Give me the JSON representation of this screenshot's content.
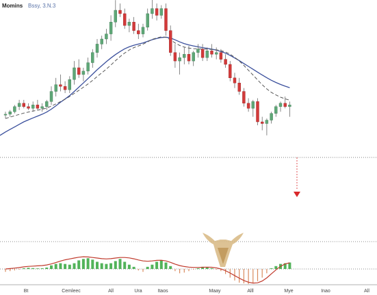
{
  "chart_data": {
    "type": "candlestick",
    "title": "Momins",
    "subtitle": "Bssy, 3.N.3",
    "x_ticks": [
      "Bt",
      "Cemleec",
      "All",
      "Ura",
      "Itaos",
      "Maay",
      "Alll",
      "Mye",
      "Inao",
      "All"
    ],
    "y_range": [
      0,
      100
    ],
    "reference_level": 40.5,
    "colors": {
      "up": "#5fa777",
      "down": "#d23a3a",
      "ma_slow": "#3a4f9c",
      "ma_fast": "#555555",
      "macd_line": "#c0392b",
      "histogram_pos": "#52b35a",
      "histogram_neg": "#d98a5e",
      "arrow": "#d9282b",
      "watermark": "#c7a36b"
    },
    "candles": [
      {
        "o": 38,
        "h": 40,
        "l": 36,
        "c": 38.5
      },
      {
        "o": 38.5,
        "h": 41,
        "l": 37,
        "c": 40
      },
      {
        "o": 40,
        "h": 44,
        "l": 39,
        "c": 43
      },
      {
        "o": 43,
        "h": 47,
        "l": 41,
        "c": 45
      },
      {
        "o": 45,
        "h": 47,
        "l": 42,
        "c": 43
      },
      {
        "o": 43,
        "h": 45,
        "l": 41,
        "c": 42
      },
      {
        "o": 42,
        "h": 46,
        "l": 40,
        "c": 44
      },
      {
        "o": 44,
        "h": 47,
        "l": 41,
        "c": 42
      },
      {
        "o": 42,
        "h": 45,
        "l": 40,
        "c": 43
      },
      {
        "o": 43,
        "h": 47,
        "l": 41,
        "c": 46
      },
      {
        "o": 46,
        "h": 55,
        "l": 44,
        "c": 52
      },
      {
        "o": 52,
        "h": 60,
        "l": 49,
        "c": 56
      },
      {
        "o": 56,
        "h": 62,
        "l": 52,
        "c": 55
      },
      {
        "o": 55,
        "h": 58,
        "l": 51,
        "c": 53
      },
      {
        "o": 53,
        "h": 61,
        "l": 51,
        "c": 59
      },
      {
        "o": 59,
        "h": 70,
        "l": 56,
        "c": 66
      },
      {
        "o": 66,
        "h": 71,
        "l": 60,
        "c": 62
      },
      {
        "o": 62,
        "h": 66,
        "l": 58,
        "c": 64
      },
      {
        "o": 64,
        "h": 72,
        "l": 62,
        "c": 69
      },
      {
        "o": 69,
        "h": 77,
        "l": 66,
        "c": 75
      },
      {
        "o": 75,
        "h": 83,
        "l": 72,
        "c": 80
      },
      {
        "o": 80,
        "h": 85,
        "l": 77,
        "c": 83
      },
      {
        "o": 83,
        "h": 89,
        "l": 80,
        "c": 86
      },
      {
        "o": 86,
        "h": 97,
        "l": 82,
        "c": 93
      },
      {
        "o": 93,
        "h": 106,
        "l": 90,
        "c": 100
      },
      {
        "o": 100,
        "h": 104,
        "l": 96,
        "c": 98
      },
      {
        "o": 98,
        "h": 101,
        "l": 89,
        "c": 91
      },
      {
        "o": 91,
        "h": 95,
        "l": 87,
        "c": 93
      },
      {
        "o": 93,
        "h": 96,
        "l": 86,
        "c": 88
      },
      {
        "o": 88,
        "h": 92,
        "l": 83,
        "c": 86
      },
      {
        "o": 86,
        "h": 92,
        "l": 84,
        "c": 90
      },
      {
        "o": 90,
        "h": 101,
        "l": 88,
        "c": 98
      },
      {
        "o": 98,
        "h": 108,
        "l": 95,
        "c": 101
      },
      {
        "o": 101,
        "h": 104,
        "l": 94,
        "c": 97
      },
      {
        "o": 97,
        "h": 103,
        "l": 95,
        "c": 101
      },
      {
        "o": 101,
        "h": 104,
        "l": 85,
        "c": 88
      },
      {
        "o": 88,
        "h": 91,
        "l": 73,
        "c": 75
      },
      {
        "o": 75,
        "h": 80,
        "l": 66,
        "c": 70
      },
      {
        "o": 70,
        "h": 75,
        "l": 62,
        "c": 72
      },
      {
        "o": 72,
        "h": 78,
        "l": 68,
        "c": 74
      },
      {
        "o": 74,
        "h": 79,
        "l": 68,
        "c": 70
      },
      {
        "o": 70,
        "h": 76,
        "l": 67,
        "c": 75
      },
      {
        "o": 75,
        "h": 80,
        "l": 72,
        "c": 77
      },
      {
        "o": 77,
        "h": 80,
        "l": 70,
        "c": 72
      },
      {
        "o": 72,
        "h": 78,
        "l": 70,
        "c": 76
      },
      {
        "o": 76,
        "h": 80,
        "l": 72,
        "c": 74
      },
      {
        "o": 74,
        "h": 78,
        "l": 71,
        "c": 75
      },
      {
        "o": 75,
        "h": 77,
        "l": 69,
        "c": 71
      },
      {
        "o": 71,
        "h": 74,
        "l": 66,
        "c": 68
      },
      {
        "o": 68,
        "h": 70,
        "l": 58,
        "c": 60
      },
      {
        "o": 60,
        "h": 63,
        "l": 54,
        "c": 57
      },
      {
        "o": 57,
        "h": 60,
        "l": 50,
        "c": 52
      },
      {
        "o": 52,
        "h": 54,
        "l": 43,
        "c": 45
      },
      {
        "o": 45,
        "h": 48,
        "l": 40,
        "c": 42
      },
      {
        "o": 42,
        "h": 47,
        "l": 37,
        "c": 46
      },
      {
        "o": 46,
        "h": 48,
        "l": 32,
        "c": 34
      },
      {
        "o": 34,
        "h": 37,
        "l": 29,
        "c": 33
      },
      {
        "o": 33,
        "h": 36,
        "l": 26,
        "c": 35
      },
      {
        "o": 35,
        "h": 40,
        "l": 33,
        "c": 39
      },
      {
        "o": 39,
        "h": 44,
        "l": 37,
        "c": 43
      },
      {
        "o": 43,
        "h": 46,
        "l": 40,
        "c": 45
      },
      {
        "o": 45,
        "h": 49,
        "l": 42,
        "c": 43
      },
      {
        "o": 43,
        "h": 46,
        "l": 37,
        "c": 44
      }
    ],
    "ma_slow": [
      28,
      29.5,
      31,
      32.5,
      34,
      35.2,
      36.3,
      37.4,
      38.5,
      39.8,
      41.5,
      43.5,
      45.6,
      47.5,
      49.5,
      52,
      54.5,
      57,
      59.6,
      62.2,
      64.8,
      67.2,
      69.6,
      71.8,
      73.8,
      75.6,
      77.2,
      78.4,
      79.3,
      80,
      80.7,
      81.6,
      82.6,
      83.3,
      83.9,
      84.1,
      83.6,
      82.5,
      81.3,
      80.3,
      79.5,
      78.9,
      78.4,
      77.9,
      77.5,
      77,
      76.4,
      75.6,
      74.6,
      73.3,
      71.8,
      70.2,
      68.5,
      66.8,
      65.1,
      63.4,
      61.7,
      60.1,
      58.6,
      57.3,
      56.1,
      55.1,
      54.2
    ],
    "ma_fast": [
      36,
      36.8,
      37.6,
      38.4,
      39.2,
      39.8,
      40.4,
      40.9,
      41.4,
      42.2,
      43.3,
      44.6,
      46,
      47.4,
      49,
      50.8,
      52.6,
      54.5,
      56.4,
      58.5,
      60.8,
      63,
      65.2,
      67.6,
      70.2,
      72.6,
      74.7,
      76.5,
      77.9,
      78.9,
      79.9,
      81.3,
      82.8,
      83.6,
      84.3,
      84,
      82.5,
      80.7,
      79.2,
      78.2,
      77.6,
      77.3,
      77.2,
      77,
      77,
      76.8,
      76.6,
      76.1,
      75.3,
      74,
      72.2,
      70,
      67.4,
      64.5,
      61.7,
      58.8,
      56,
      53.5,
      51.4,
      49.9,
      48.6,
      47.6,
      46.8
    ],
    "histogram": [
      -2,
      -1.5,
      -1,
      -0.5,
      0.5,
      0.8,
      0.6,
      0.4,
      0.5,
      1,
      2.5,
      3.5,
      4,
      3.5,
      3,
      4,
      6,
      7,
      7.5,
      6.5,
      5,
      4,
      3.5,
      4,
      5.5,
      7,
      5,
      3,
      1.5,
      -1,
      -2,
      1.5,
      3,
      5,
      6,
      4.5,
      2,
      -1.5,
      -3,
      -2.5,
      -1.5,
      -0.5,
      0.5,
      1.5,
      1,
      0.5,
      -0.5,
      -1.5,
      -3.5,
      -6,
      -8,
      -9.5,
      -10,
      -10.5,
      -10,
      -8.5,
      -6,
      -3,
      0.5,
      2,
      3.5,
      4,
      4.5
    ],
    "macd_line": [
      0,
      0.3,
      0.6,
      1,
      1.5,
      1.8,
      2,
      2.2,
      2.4,
      2.8,
      3.5,
      4.5,
      5.5,
      6.4,
      7,
      7.6,
      8.2,
      8.5,
      8.4,
      8,
      7.6,
      7.2,
      7,
      7.2,
      7.6,
      8,
      8,
      7.7,
      7.1,
      6.3,
      5.6,
      5.4,
      5.6,
      6,
      6.1,
      5.6,
      4.6,
      3.4,
      2.4,
      1.7,
      1.3,
      1.1,
      1.1,
      1.2,
      1.3,
      1.2,
      0.8,
      0,
      -1.2,
      -2.8,
      -4.6,
      -6.4,
      -8,
      -9.2,
      -9.8,
      -9.6,
      -8.4,
      -6.2,
      -3.4,
      -0.6,
      1.8,
      3.5,
      4.3
    ]
  }
}
